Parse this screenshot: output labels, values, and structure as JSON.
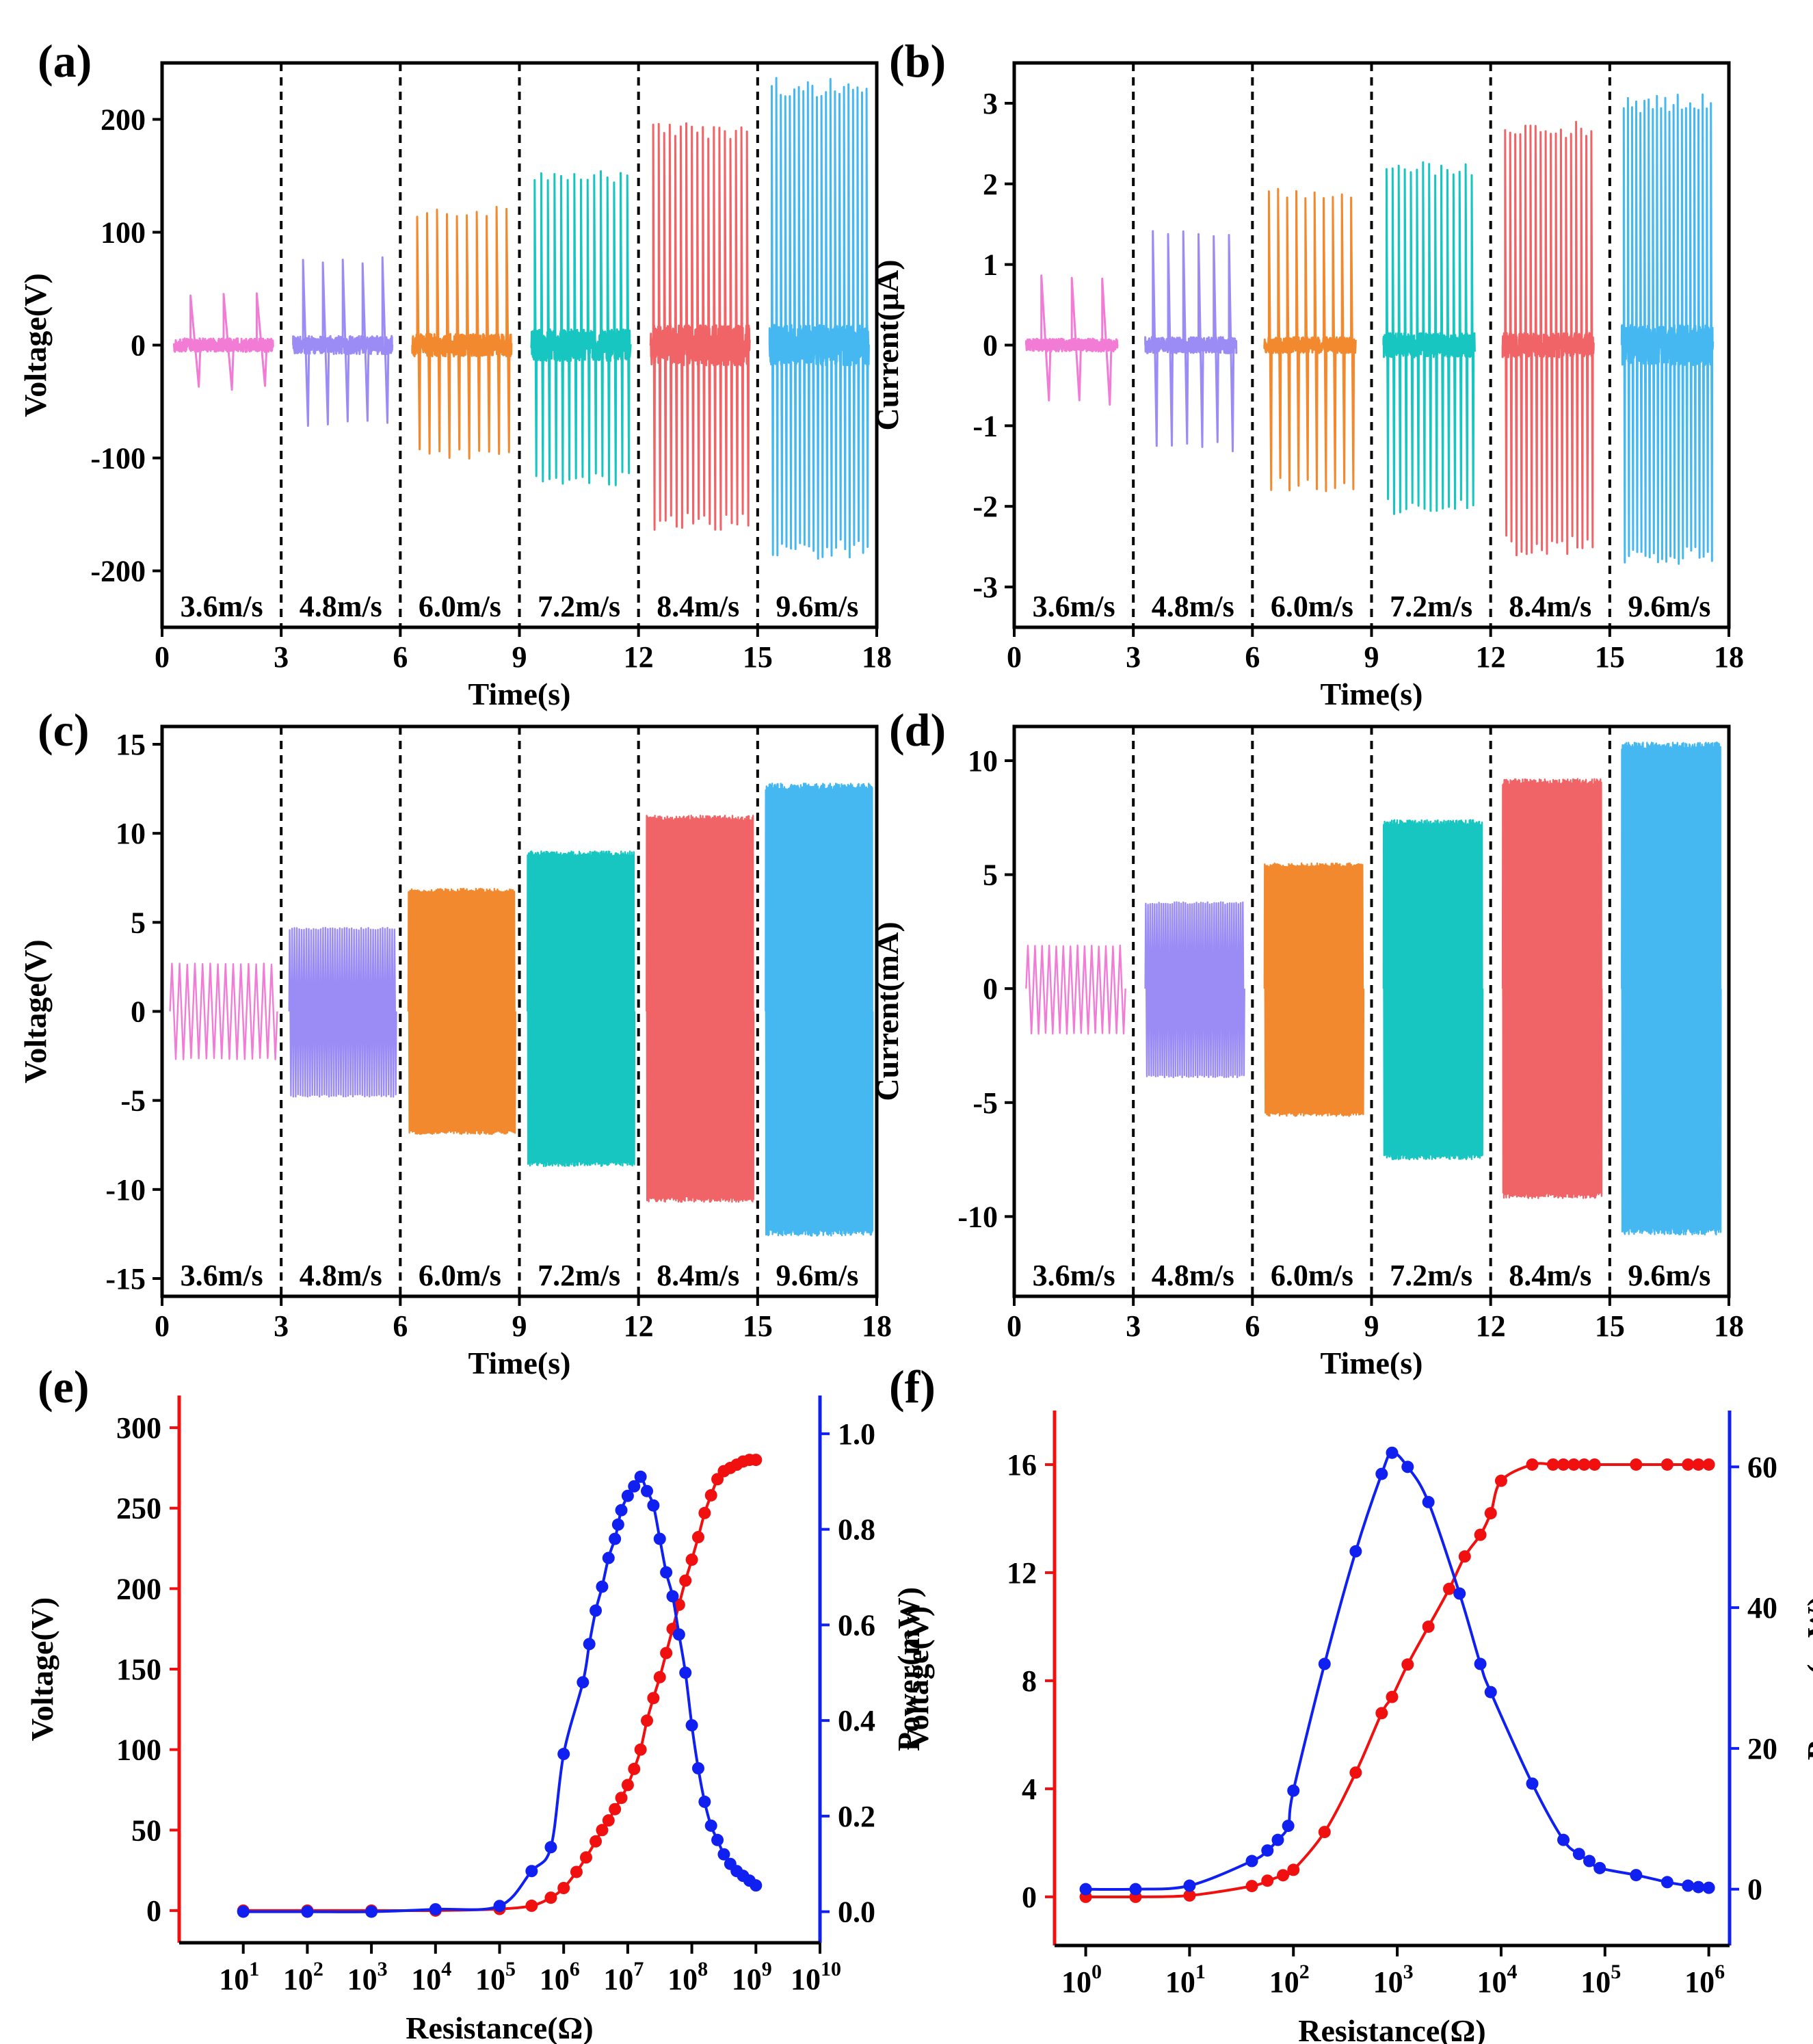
{
  "figure": {
    "colors": {
      "pink": "#f27bd6",
      "purple": "#9b8cf5",
      "orange": "#f2892e",
      "cyan": "#17c6c1",
      "red": "#f06467",
      "blue": "#45b8f2",
      "curve_red": "#f01010",
      "curve_blue": "#1020f0",
      "axis": "#000000"
    }
  },
  "chart_data": [
    {
      "id": "a",
      "panel_label": "(a)",
      "type": "line",
      "xlabel": "Time(s)",
      "ylabel": "Voltage(V)",
      "xlim": [
        0,
        18
      ],
      "ylim": [
        -250,
        250
      ],
      "xticks": [
        0,
        3,
        6,
        9,
        12,
        15,
        18
      ],
      "yticks": [
        -200,
        -100,
        0,
        100,
        200
      ],
      "dividers": [
        3,
        6,
        9,
        12,
        15
      ],
      "segments": [
        {
          "label": "3.6m/s",
          "t0": 0.3,
          "t1": 2.8,
          "max": 47,
          "min": -40,
          "noise": 6,
          "count": 3,
          "color": "pink"
        },
        {
          "label": "4.8m/s",
          "t0": 3.3,
          "t1": 5.8,
          "max": 78,
          "min": -72,
          "noise": 8,
          "count": 5,
          "color": "purple"
        },
        {
          "label": "6.0m/s",
          "t0": 6.3,
          "t1": 8.8,
          "max": 123,
          "min": -102,
          "noise": 10,
          "count": 10,
          "color": "orange"
        },
        {
          "label": "7.2m/s",
          "t0": 9.3,
          "t1": 11.8,
          "max": 155,
          "min": -125,
          "noise": 14,
          "count": 15,
          "color": "cyan"
        },
        {
          "label": "8.4m/s",
          "t0": 12.3,
          "t1": 14.8,
          "max": 198,
          "min": -165,
          "noise": 18,
          "count": 18,
          "color": "red"
        },
        {
          "label": "9.6m/s",
          "t0": 15.3,
          "t1": 17.8,
          "max": 238,
          "min": -190,
          "noise": 18,
          "count": 22,
          "color": "blue"
        }
      ]
    },
    {
      "id": "b",
      "panel_label": "(b)",
      "type": "line",
      "xlabel": "Time(s)",
      "ylabel": "Current(μA)",
      "xlim": [
        0,
        18
      ],
      "ylim": [
        -3.5,
        3.5
      ],
      "xticks": [
        0,
        3,
        6,
        9,
        12,
        15,
        18
      ],
      "yticks": [
        -3,
        -2,
        -1,
        0,
        1,
        2,
        3
      ],
      "dividers": [
        3,
        6,
        9,
        12,
        15
      ],
      "segments": [
        {
          "label": "3.6m/s",
          "t0": 0.3,
          "t1": 2.6,
          "max": 0.88,
          "min": -0.75,
          "noise": 0.08,
          "count": 3,
          "color": "pink"
        },
        {
          "label": "4.8m/s",
          "t0": 3.3,
          "t1": 5.6,
          "max": 1.45,
          "min": -1.32,
          "noise": 0.1,
          "count": 6,
          "color": "purple"
        },
        {
          "label": "6.0m/s",
          "t0": 6.3,
          "t1": 8.6,
          "max": 1.95,
          "min": -1.82,
          "noise": 0.1,
          "count": 10,
          "color": "orange"
        },
        {
          "label": "7.2m/s",
          "t0": 9.3,
          "t1": 11.6,
          "max": 2.28,
          "min": -2.1,
          "noise": 0.15,
          "count": 15,
          "color": "cyan"
        },
        {
          "label": "8.4m/s",
          "t0": 12.3,
          "t1": 14.6,
          "max": 2.78,
          "min": -2.62,
          "noise": 0.15,
          "count": 18,
          "color": "red"
        },
        {
          "label": "9.6m/s",
          "t0": 15.3,
          "t1": 17.6,
          "max": 3.12,
          "min": -2.72,
          "noise": 0.25,
          "count": 22,
          "color": "blue"
        }
      ]
    },
    {
      "id": "c",
      "panel_label": "(c)",
      "type": "line",
      "xlabel": "Time(s)",
      "ylabel": "Voltage(V)",
      "xlim": [
        0,
        18
      ],
      "ylim": [
        -16,
        16
      ],
      "xticks": [
        0,
        3,
        6,
        9,
        12,
        15,
        18
      ],
      "yticks": [
        -15,
        -10,
        -5,
        0,
        5,
        10,
        15
      ],
      "dividers": [
        3,
        6,
        9,
        12,
        15
      ],
      "segments": [
        {
          "label": "3.6m/s",
          "t0": 0.2,
          "t1": 2.9,
          "max": 2.7,
          "min": -2.7,
          "count": 14,
          "color": "pink"
        },
        {
          "label": "4.8m/s",
          "t0": 3.2,
          "t1": 5.9,
          "max": 4.7,
          "min": -4.8,
          "count": 45,
          "color": "purple"
        },
        {
          "label": "6.0m/s",
          "t0": 6.2,
          "t1": 8.9,
          "max": 6.9,
          "min": -6.9,
          "count": 70,
          "color": "orange"
        },
        {
          "label": "7.2m/s",
          "t0": 9.2,
          "t1": 11.9,
          "max": 9.0,
          "min": -8.7,
          "count": 110,
          "color": "cyan"
        },
        {
          "label": "8.4m/s",
          "t0": 12.2,
          "t1": 14.9,
          "max": 11.0,
          "min": -10.7,
          "count": 130,
          "color": "red"
        },
        {
          "label": "9.6m/s",
          "t0": 15.2,
          "t1": 17.9,
          "max": 12.8,
          "min": -12.6,
          "count": 150,
          "color": "blue"
        }
      ]
    },
    {
      "id": "d",
      "panel_label": "(d)",
      "type": "line",
      "xlabel": "Time(s)",
      "ylabel": "Current(mA)",
      "xlim": [
        0,
        18
      ],
      "ylim": [
        -13.5,
        11.5
      ],
      "xticks": [
        0,
        3,
        6,
        9,
        12,
        15,
        18
      ],
      "yticks": [
        -10,
        -5,
        0,
        5,
        10
      ],
      "dividers": [
        3,
        6,
        9,
        12,
        15
      ],
      "segments": [
        {
          "label": "3.6m/s",
          "t0": 0.3,
          "t1": 2.8,
          "max": 1.9,
          "min": -2.0,
          "count": 14,
          "color": "pink"
        },
        {
          "label": "4.8m/s",
          "t0": 3.3,
          "t1": 5.8,
          "max": 3.8,
          "min": -3.9,
          "count": 45,
          "color": "purple"
        },
        {
          "label": "6.0m/s",
          "t0": 6.3,
          "t1": 8.8,
          "max": 5.5,
          "min": -5.6,
          "count": 70,
          "color": "orange"
        },
        {
          "label": "7.2m/s",
          "t0": 9.3,
          "t1": 11.8,
          "max": 7.4,
          "min": -7.5,
          "count": 110,
          "color": "cyan"
        },
        {
          "label": "8.4m/s",
          "t0": 12.3,
          "t1": 14.8,
          "max": 9.2,
          "min": -9.2,
          "count": 130,
          "color": "red"
        },
        {
          "label": "9.6m/s",
          "t0": 15.3,
          "t1": 17.8,
          "max": 10.8,
          "min": -10.8,
          "count": 150,
          "color": "blue"
        }
      ]
    },
    {
      "id": "e",
      "panel_label": "(e)",
      "type": "line",
      "xscale": "log",
      "xlabel": "Resistance(Ω)",
      "xlim_exp": [
        0,
        10
      ],
      "xtick_exps": [
        1,
        2,
        3,
        4,
        5,
        6,
        7,
        8,
        9,
        10
      ],
      "y_left": {
        "label": "Voltage(V)",
        "lim": [
          -20,
          320
        ],
        "ticks": [
          0,
          50,
          100,
          150,
          200,
          250,
          300
        ],
        "color": "curve_red"
      },
      "y_right": {
        "label": "Power(mW)",
        "lim": [
          -0.065,
          1.08
        ],
        "ticks": [
          "0.0",
          "0.2",
          "0.4",
          "0.6",
          "0.8",
          "1.0"
        ],
        "color": "curve_blue"
      },
      "series": [
        {
          "name": "Voltage",
          "axis": "left",
          "color": "curve_red",
          "x_exp": [
            1,
            2,
            3,
            4,
            5,
            5.5,
            5.8,
            6,
            6.2,
            6.35,
            6.5,
            6.6,
            6.7,
            6.8,
            6.9,
            7,
            7.1,
            7.2,
            7.3,
            7.4,
            7.5,
            7.6,
            7.7,
            7.8,
            7.9,
            8,
            8.1,
            8.2,
            8.3,
            8.4,
            8.5,
            8.6,
            8.7,
            8.8,
            8.9,
            9
          ],
          "values": [
            0,
            0,
            0,
            0,
            1,
            3,
            8,
            14,
            24,
            33,
            43,
            50,
            56,
            63,
            70,
            78,
            88,
            100,
            118,
            132,
            145,
            160,
            175,
            190,
            205,
            218,
            232,
            247,
            258,
            268,
            273,
            275,
            277,
            279,
            280,
            280
          ]
        },
        {
          "name": "Power",
          "axis": "right",
          "color": "curve_blue",
          "x_exp": [
            1,
            2,
            3,
            4,
            5,
            5.5,
            5.8,
            6,
            6.3,
            6.4,
            6.5,
            6.6,
            6.7,
            6.8,
            6.85,
            6.9,
            7,
            7.1,
            7.2,
            7.3,
            7.4,
            7.5,
            7.6,
            7.7,
            7.8,
            7.9,
            8,
            8.1,
            8.2,
            8.3,
            8.4,
            8.5,
            8.6,
            8.7,
            8.8,
            8.9,
            9
          ],
          "values": [
            0.0,
            0.0,
            0.0,
            0.005,
            0.012,
            0.085,
            0.135,
            0.33,
            0.48,
            0.56,
            0.63,
            0.68,
            0.74,
            0.78,
            0.81,
            0.84,
            0.87,
            0.89,
            0.91,
            0.88,
            0.85,
            0.78,
            0.71,
            0.66,
            0.58,
            0.5,
            0.39,
            0.3,
            0.23,
            0.18,
            0.15,
            0.12,
            0.1,
            0.085,
            0.075,
            0.065,
            0.055
          ]
        }
      ]
    },
    {
      "id": "f",
      "panel_label": "(f)",
      "type": "line",
      "xscale": "log",
      "xlabel": "Resistance(Ω)",
      "xlim_exp": [
        -0.3,
        6.2
      ],
      "xtick_exps": [
        0,
        1,
        2,
        3,
        4,
        5,
        6
      ],
      "y_left": {
        "label": "Voltage(V)",
        "lim": [
          -1.8,
          18
        ],
        "ticks": [
          0,
          4,
          8,
          12,
          16
        ],
        "color": "curve_red"
      },
      "y_right": {
        "label": "Power(mW)",
        "lim": [
          -8,
          68
        ],
        "ticks": [
          0,
          20,
          40,
          60
        ],
        "color": "curve_blue"
      },
      "series": [
        {
          "name": "Voltage",
          "axis": "left",
          "color": "curve_red",
          "x_exp": [
            0,
            0.48,
            1,
            1.6,
            1.75,
            1.9,
            2,
            2.3,
            2.6,
            2.85,
            2.95,
            3.1,
            3.3,
            3.5,
            3.65,
            3.8,
            3.9,
            4,
            4.3,
            4.5,
            4.6,
            4.7,
            4.8,
            4.9,
            5.3,
            5.6,
            5.8,
            5.9,
            6
          ],
          "values": [
            0,
            0,
            0.05,
            0.4,
            0.6,
            0.8,
            1.0,
            2.4,
            4.6,
            6.8,
            7.4,
            8.6,
            10.0,
            11.4,
            12.6,
            13.4,
            14.2,
            15.4,
            16,
            16,
            16,
            16,
            16,
            16,
            16,
            16,
            16,
            16,
            16
          ]
        },
        {
          "name": "Power",
          "axis": "right",
          "color": "curve_blue",
          "x_exp": [
            0,
            0.48,
            1,
            1.6,
            1.75,
            1.85,
            1.95,
            2,
            2.3,
            2.6,
            2.85,
            2.95,
            3.1,
            3.3,
            3.6,
            3.8,
            3.9,
            4.3,
            4.6,
            4.75,
            4.85,
            4.95,
            5.3,
            5.6,
            5.8,
            5.9,
            6
          ],
          "values": [
            0,
            0,
            0.5,
            4,
            5.5,
            7,
            9,
            14,
            32,
            48,
            59,
            62,
            60,
            55,
            42,
            32,
            28,
            15,
            7,
            5,
            4,
            3,
            2,
            1,
            0.5,
            0.3,
            0.2
          ]
        }
      ]
    }
  ]
}
